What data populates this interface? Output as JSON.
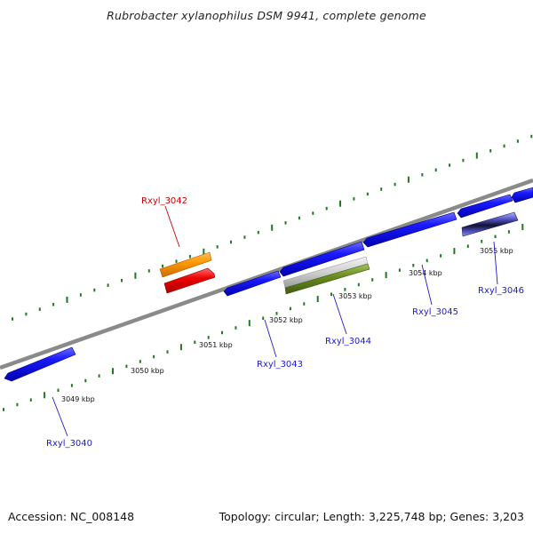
{
  "title": "Rubrobacter xylanophilus DSM 9941, complete genome",
  "footer": {
    "accession": "Accession: NC_008148",
    "summary": "Topology: circular; Length: 3,225,748 bp; Genes: 3,203"
  },
  "colors": {
    "backbone": "#8a8a8a",
    "tick": "#1f7a1f",
    "forward_gene": "#1a1aff",
    "label_blue": "#1a1ad6",
    "label_red": "#d00000",
    "orange_feature": "#ff9900",
    "red_feature": "#ee0000",
    "green_feature": "#6b8e23",
    "gray_feature": "#c8c8c8",
    "dark_feature": "#1a1a4a"
  },
  "kbp_labels": [
    "3049 kbp",
    "3050 kbp",
    "3051 kbp",
    "3052 kbp",
    "3053 kbp",
    "3054 kbp",
    "3055 kbp"
  ],
  "gene_labels": {
    "Rxyl_3042": "Rxyl_3042",
    "Rxyl_3043": "Rxyl_3043",
    "Rxyl_3044": "Rxyl_3044",
    "Rxyl_3045": "Rxyl_3045",
    "Rxyl_3046": "Rxyl_3046",
    "Rxyl_3040": "Rxyl_3040"
  }
}
